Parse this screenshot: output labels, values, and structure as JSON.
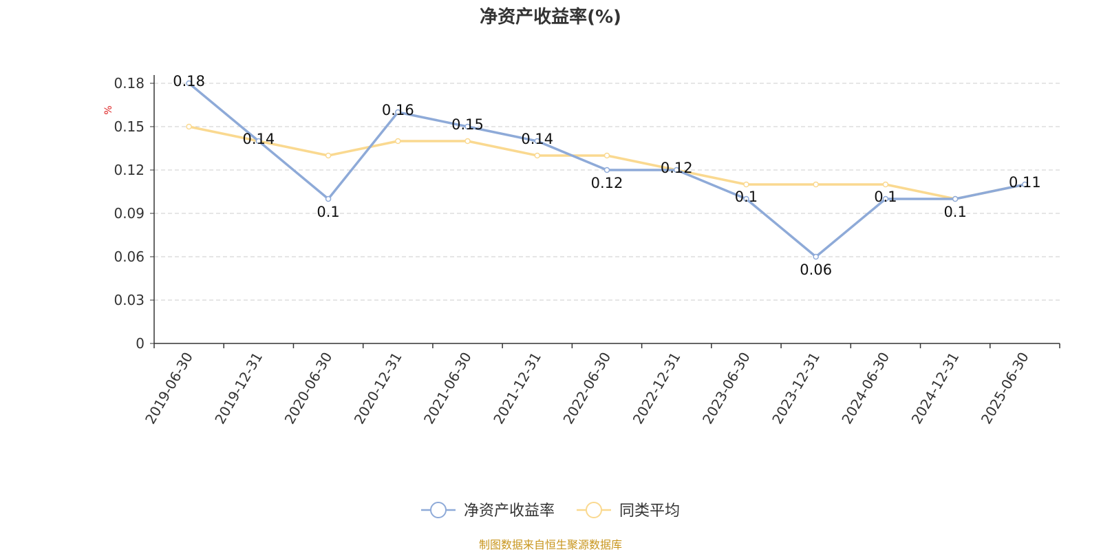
{
  "title": "净资产收益率(%)",
  "source_note": "制图数据来自恒生聚源数据库",
  "chart_data": {
    "type": "line",
    "title": "净资产收益率(%)",
    "ylabel": "%",
    "xlabel": "",
    "categories": [
      "2019-06-30",
      "2019-12-31",
      "2020-06-30",
      "2020-12-31",
      "2021-06-30",
      "2021-12-31",
      "2022-06-30",
      "2022-12-31",
      "2023-06-30",
      "2023-12-31",
      "2024-06-30",
      "2024-12-31",
      "2025-06-30"
    ],
    "ylim": [
      0,
      0.18
    ],
    "yticks": [
      "0",
      "0.03",
      "0.06",
      "0.09",
      "0.12",
      "0.15",
      "0.18"
    ],
    "grid": true,
    "legend_position": "bottom-center",
    "series": [
      {
        "name": "净资产收益率",
        "color": "#8eaad8",
        "values": [
          0.18,
          0.14,
          0.1,
          0.16,
          0.15,
          0.14,
          0.12,
          0.12,
          0.1,
          0.06,
          0.1,
          0.1,
          0.11
        ],
        "labels": [
          "0.18",
          "0.14",
          "0.1",
          "0.16",
          "0.15",
          "0.14",
          "0.12",
          "0.12",
          "0.1",
          "0.06",
          "0.1",
          "0.1",
          "0.11"
        ]
      },
      {
        "name": "同类平均",
        "color": "#fad990",
        "values": [
          0.15,
          0.14,
          0.13,
          0.14,
          0.14,
          0.13,
          0.13,
          0.12,
          0.11,
          0.11,
          0.11,
          0.1,
          0.11
        ]
      }
    ]
  }
}
